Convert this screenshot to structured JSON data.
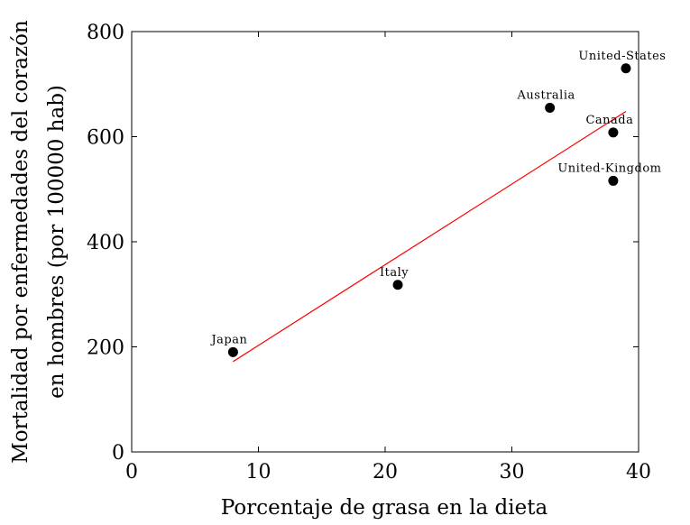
{
  "chart_data": {
    "type": "scatter",
    "title": "",
    "xlabel": "Porcentaje de grasa en la dieta",
    "ylabel_lines": [
      "Mortalidad por enfermedades del corazón",
      "en hombres (por 100000 hab)"
    ],
    "xlim": [
      0,
      40
    ],
    "ylim": [
      0,
      800
    ],
    "x_ticks": [
      "0",
      "10",
      "20",
      "30",
      "40"
    ],
    "y_ticks": [
      "0",
      "200",
      "400",
      "600",
      "800"
    ],
    "grid": false,
    "series": [
      {
        "type": "scatter",
        "color": "#000000",
        "points": [
          {
            "label": "Japan",
            "x": 8,
            "y": 190
          },
          {
            "label": "Italy",
            "x": 21,
            "y": 318
          },
          {
            "label": "Australia",
            "x": 33,
            "y": 655
          },
          {
            "label": "Canada",
            "x": 38,
            "y": 608
          },
          {
            "label": "United-Kingdom",
            "x": 38,
            "y": 516
          },
          {
            "label": "United-States",
            "x": 39,
            "y": 730
          }
        ]
      },
      {
        "type": "line",
        "color": "#ff0000",
        "x": [
          8,
          39
        ],
        "y": [
          172,
          648
        ]
      }
    ]
  }
}
